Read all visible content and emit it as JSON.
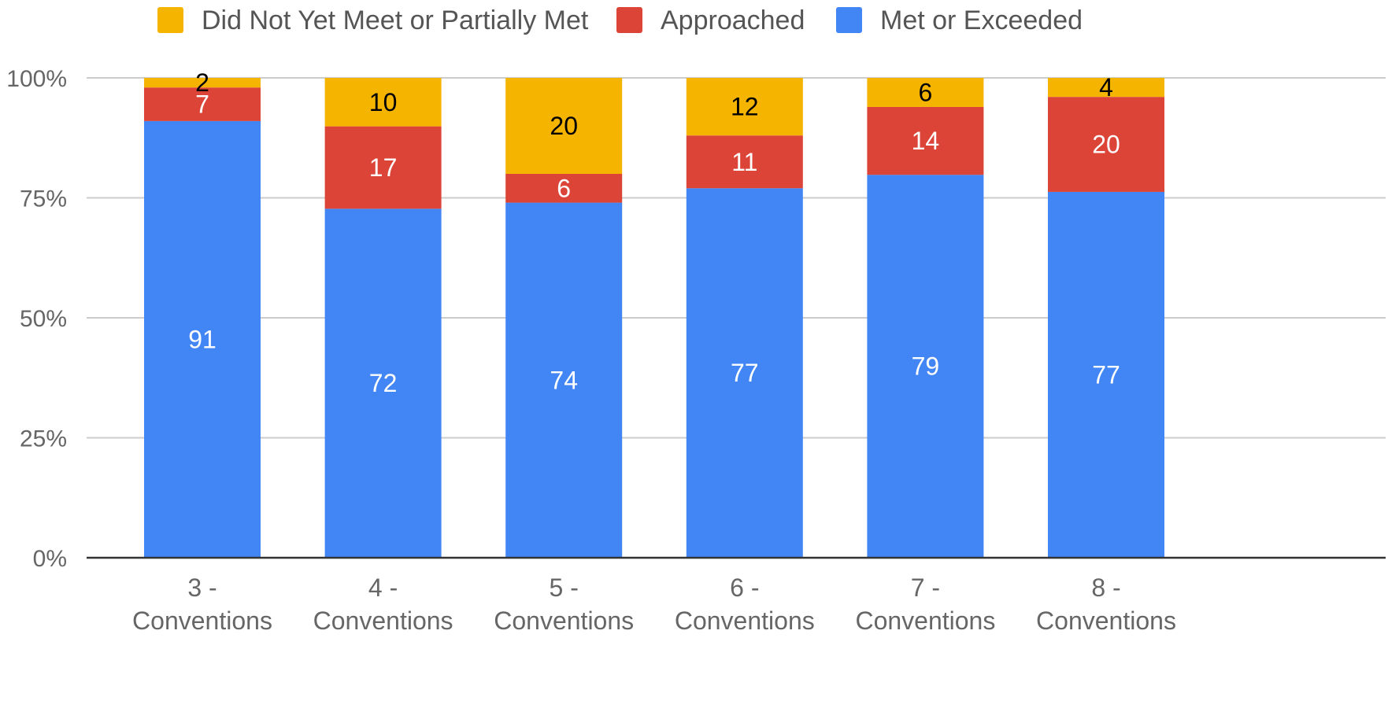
{
  "chart_data": {
    "type": "bar",
    "stacked": true,
    "normalized": true,
    "categories": [
      [
        "3 -",
        "Conventions"
      ],
      [
        "4 -",
        "Conventions"
      ],
      [
        "5 -",
        "Conventions"
      ],
      [
        "6 -",
        "Conventions"
      ],
      [
        "7 -",
        "Conventions"
      ],
      [
        "8 -",
        "Conventions"
      ]
    ],
    "series": [
      {
        "name": "Met or Exceeded",
        "color": "#4285F4",
        "label_color": "#ffffff",
        "values": [
          91,
          72,
          74,
          77,
          79,
          77
        ]
      },
      {
        "name": "Approached",
        "color": "#DB4437",
        "label_color": "#ffffff",
        "values": [
          7,
          17,
          6,
          11,
          14,
          20
        ]
      },
      {
        "name": "Did Not Yet Meet or Partially Met",
        "color": "#F4B400",
        "label_color": "#000000",
        "values": [
          2,
          10,
          20,
          12,
          6,
          4
        ]
      }
    ],
    "legend_order": [
      "Did Not Yet Meet or Partially Met",
      "Approached",
      "Met or Exceeded"
    ],
    "legend_position": "top",
    "y_ticks": [
      "0%",
      "25%",
      "50%",
      "75%",
      "100%"
    ],
    "ylim": [
      0,
      100
    ],
    "grid": true,
    "title": "",
    "xlabel": "",
    "ylabel": ""
  }
}
